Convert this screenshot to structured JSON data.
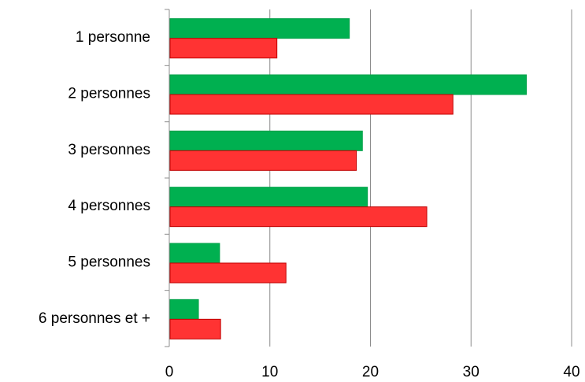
{
  "chart_data": {
    "type": "bar",
    "orientation": "horizontal",
    "title": "",
    "xlabel": "",
    "ylabel": "",
    "categories": [
      "1 personne",
      "2 personnes",
      "3 personnes",
      "4 personnes",
      "5 personnes",
      "6 personnes et +"
    ],
    "series": [
      {
        "color": "#00b050",
        "values": [
          17.9,
          35.5,
          19.2,
          19.7,
          5.0,
          2.9
        ]
      },
      {
        "color": "#ff3333",
        "values": [
          10.7,
          28.2,
          18.6,
          25.6,
          11.6,
          5.1
        ]
      }
    ],
    "xlim": [
      0,
      40
    ],
    "xticks": [
      0,
      10,
      20,
      30,
      40
    ],
    "xtick_labels": [
      "0",
      "10",
      "20",
      "30",
      "40"
    ],
    "grid": "vertical",
    "legend": "none"
  }
}
